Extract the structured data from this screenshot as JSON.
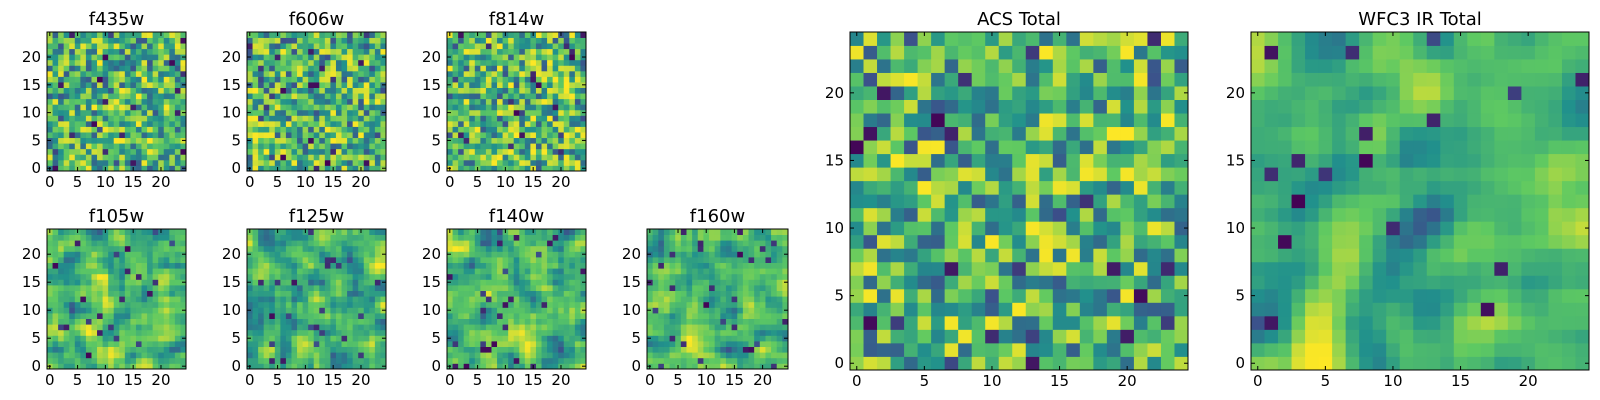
{
  "figure": {
    "description_type": "heatmap-grid"
  },
  "colors": {
    "colormap": [
      "#440154",
      "#3b528b",
      "#21918c",
      "#5ec962",
      "#fde725"
    ],
    "frame": "#000000",
    "text": "#000000"
  },
  "chart_data": [
    {
      "type": "heatmap",
      "title": "f435w",
      "xlabel": "",
      "ylabel": "",
      "xlim": [
        -0.5,
        24.5
      ],
      "ylim": [
        -0.5,
        24.5
      ],
      "size": 25,
      "xticks": [
        0,
        5,
        10,
        15,
        20
      ],
      "xtick_labels": [
        "0",
        "5",
        "10",
        "15",
        "20"
      ],
      "yticks": [
        0,
        5,
        10,
        15,
        20
      ],
      "ytick_labels": [
        "0",
        "5",
        "10",
        "15",
        "20"
      ],
      "seed": 101,
      "smooth": 0
    },
    {
      "type": "heatmap",
      "title": "f606w",
      "xlabel": "",
      "ylabel": "",
      "xlim": [
        -0.5,
        24.5
      ],
      "ylim": [
        -0.5,
        24.5
      ],
      "size": 25,
      "xticks": [
        0,
        5,
        10,
        15,
        20
      ],
      "xtick_labels": [
        "0",
        "5",
        "10",
        "15",
        "20"
      ],
      "yticks": [
        0,
        5,
        10,
        15,
        20
      ],
      "ytick_labels": [
        "0",
        "5",
        "10",
        "15",
        "20"
      ],
      "seed": 202,
      "smooth": 0
    },
    {
      "type": "heatmap",
      "title": "f814w",
      "xlabel": "",
      "ylabel": "",
      "xlim": [
        -0.5,
        24.5
      ],
      "ylim": [
        -0.5,
        24.5
      ],
      "size": 25,
      "xticks": [
        0,
        5,
        10,
        15,
        20
      ],
      "xtick_labels": [
        "0",
        "5",
        "10",
        "15",
        "20"
      ],
      "yticks": [
        0,
        5,
        10,
        15,
        20
      ],
      "ytick_labels": [
        "0",
        "5",
        "10",
        "15",
        "20"
      ],
      "seed": 303,
      "smooth": 0
    },
    {
      "type": "heatmap",
      "title": "f105w",
      "xlabel": "",
      "ylabel": "",
      "xlim": [
        -0.5,
        24.5
      ],
      "ylim": [
        -0.5,
        24.5
      ],
      "size": 25,
      "xticks": [
        0,
        5,
        10,
        15,
        20
      ],
      "xtick_labels": [
        "0",
        "5",
        "10",
        "15",
        "20"
      ],
      "yticks": [
        0,
        5,
        10,
        15,
        20
      ],
      "ytick_labels": [
        "0",
        "5",
        "10",
        "15",
        "20"
      ],
      "seed": 404,
      "smooth": 1
    },
    {
      "type": "heatmap",
      "title": "f125w",
      "xlabel": "",
      "ylabel": "",
      "xlim": [
        -0.5,
        24.5
      ],
      "ylim": [
        -0.5,
        24.5
      ],
      "size": 25,
      "xticks": [
        0,
        5,
        10,
        15,
        20
      ],
      "xtick_labels": [
        "0",
        "5",
        "10",
        "15",
        "20"
      ],
      "yticks": [
        0,
        5,
        10,
        15,
        20
      ],
      "ytick_labels": [
        "0",
        "5",
        "10",
        "15",
        "20"
      ],
      "seed": 505,
      "smooth": 1
    },
    {
      "type": "heatmap",
      "title": "f140w",
      "xlabel": "",
      "ylabel": "",
      "xlim": [
        -0.5,
        24.5
      ],
      "ylim": [
        -0.5,
        24.5
      ],
      "size": 25,
      "xticks": [
        0,
        5,
        10,
        15,
        20
      ],
      "xtick_labels": [
        "0",
        "5",
        "10",
        "15",
        "20"
      ],
      "yticks": [
        0,
        5,
        10,
        15,
        20
      ],
      "ytick_labels": [
        "0",
        "5",
        "10",
        "15",
        "20"
      ],
      "seed": 606,
      "smooth": 1
    },
    {
      "type": "heatmap",
      "title": "f160w",
      "xlabel": "",
      "ylabel": "",
      "xlim": [
        -0.5,
        24.5
      ],
      "ylim": [
        -0.5,
        24.5
      ],
      "size": 25,
      "xticks": [
        0,
        5,
        10,
        15,
        20
      ],
      "xtick_labels": [
        "0",
        "5",
        "10",
        "15",
        "20"
      ],
      "yticks": [
        0,
        5,
        10,
        15,
        20
      ],
      "ytick_labels": [
        "0",
        "5",
        "10",
        "15",
        "20"
      ],
      "seed": 707,
      "smooth": 1
    },
    {
      "type": "heatmap",
      "title": "ACS Total",
      "xlabel": "",
      "ylabel": "",
      "xlim": [
        -0.5,
        24.5
      ],
      "ylim": [
        -0.5,
        24.5
      ],
      "size": 25,
      "xticks": [
        0,
        5,
        10,
        15,
        20
      ],
      "xtick_labels": [
        "0",
        "5",
        "10",
        "15",
        "20"
      ],
      "yticks": [
        0,
        5,
        10,
        15,
        20
      ],
      "ytick_labels": [
        "0",
        "5",
        "10",
        "15",
        "20"
      ],
      "seed": 808,
      "smooth": 0
    },
    {
      "type": "heatmap",
      "title": "WFC3 IR Total",
      "xlabel": "",
      "ylabel": "",
      "xlim": [
        -0.5,
        24.5
      ],
      "ylim": [
        -0.5,
        24.5
      ],
      "size": 25,
      "xticks": [
        0,
        5,
        10,
        15,
        20
      ],
      "xtick_labels": [
        "0",
        "5",
        "10",
        "15",
        "20"
      ],
      "yticks": [
        0,
        5,
        10,
        15,
        20
      ],
      "ytick_labels": [
        "0",
        "5",
        "10",
        "15",
        "20"
      ],
      "seed": 909,
      "smooth": 2
    }
  ]
}
